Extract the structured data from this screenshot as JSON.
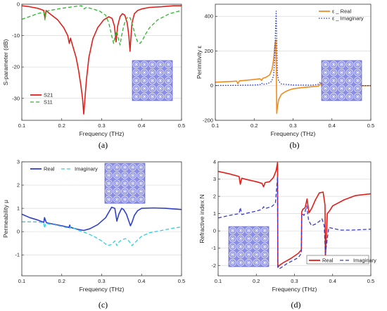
{
  "panels": [
    {
      "letter": "(a)",
      "xlabel": "Frequency (THz)",
      "ylabel": "S-parameter (dB)",
      "xlim": [
        0.1,
        0.5
      ],
      "ylim": [
        -37,
        0
      ],
      "xticks": [
        0.1,
        0.2,
        0.3,
        0.4,
        0.5
      ],
      "xtick_labels": [
        "0.1",
        "0.2",
        "0.3",
        "0.4",
        "0.5"
      ],
      "yticks": [
        -30,
        -20,
        -10,
        0
      ],
      "ytick_labels": [
        "-30",
        "-20",
        "-10",
        "0"
      ],
      "legend": [
        {
          "label": "S21",
          "color": "#e0201b",
          "dash": "solid"
        },
        {
          "label": "S11",
          "color": "#2db52d",
          "dash": "dashed"
        }
      ],
      "legend_position": "bottom-left",
      "inset": "unit-cell-array",
      "inset_position": "bottom-right"
    },
    {
      "letter": "(b)",
      "xlabel": "Frequency (THz)",
      "ylabel": "Perimitivity ε",
      "xlim": [
        0.1,
        0.5
      ],
      "ylim": [
        -200,
        470
      ],
      "xticks": [
        0.1,
        0.2,
        0.3,
        0.4,
        0.5
      ],
      "xtick_labels": [
        "0.1",
        "0.2",
        "0.3",
        "0.4",
        "0.5"
      ],
      "yticks": [
        -200,
        0,
        200,
        400
      ],
      "ytick_labels": [
        "-200",
        "0",
        "200",
        "400"
      ],
      "legend": [
        {
          "label": "ε _ Real",
          "color": "#f08c1e",
          "dash": "solid"
        },
        {
          "label": "ε _ Imaginary",
          "color": "#2233cc",
          "dash": "dotted"
        }
      ],
      "legend_position": "top-right",
      "inset": "unit-cell-array",
      "inset_position": "bottom-right"
    },
    {
      "letter": "(c)",
      "xlabel": "Frequency (THz)",
      "ylabel": "Permeability μ",
      "xlim": [
        0.1,
        0.5
      ],
      "ylim": [
        -1.9,
        3
      ],
      "xticks": [
        0.1,
        0.2,
        0.3,
        0.4,
        0.5
      ],
      "xtick_labels": [
        "0.1",
        "0.2",
        "0.3",
        "0.4",
        "0.5"
      ],
      "yticks": [
        -1,
        0,
        1,
        2,
        3
      ],
      "ytick_labels": [
        "-1",
        "0",
        "1",
        "2",
        "3"
      ],
      "legend": [
        {
          "label": "Real",
          "color": "#3040c8",
          "dash": "solid"
        },
        {
          "label": "Imaginary",
          "color": "#30d0e0",
          "dash": "dashed"
        }
      ],
      "legend_position": "top-left",
      "inset": "unit-cell-array",
      "inset_position": "top-center"
    },
    {
      "letter": "(d)",
      "xlabel": "Frequency (THz)",
      "ylabel": "Refractive index N",
      "xlim": [
        0.1,
        0.5
      ],
      "ylim": [
        -2.6,
        4
      ],
      "xticks": [
        0.1,
        0.2,
        0.3,
        0.4,
        0.5
      ],
      "xtick_labels": [
        "0.1",
        "0.2",
        "0.3",
        "0.4",
        "0.5"
      ],
      "yticks": [
        -2,
        -1,
        0,
        1,
        2,
        3,
        4
      ],
      "ytick_labels": [
        "-2",
        "-1",
        "0",
        "1",
        "2",
        "3",
        "4"
      ],
      "legend": [
        {
          "label": "Real",
          "color": "#e0201b",
          "dash": "solid"
        },
        {
          "label": "Imaginary",
          "color": "#3b3bc8",
          "dash": "dashed"
        }
      ],
      "legend_position": "bottom-right",
      "inset": "unit-cell-array",
      "inset_position": "bottom-left"
    }
  ],
  "chart_data": [
    {
      "type": "line",
      "title": "",
      "xlabel": "Frequency (THz)",
      "ylabel": "S-parameter (dB)",
      "xlim": [
        0.1,
        0.5
      ],
      "ylim": [
        -37,
        0
      ],
      "grid": "horizontal",
      "legend_position": "bottom-left",
      "series": [
        {
          "name": "S21",
          "color": "#e0201b",
          "dash": "solid",
          "x": [
            0.1,
            0.12,
            0.14,
            0.155,
            0.158,
            0.161,
            0.163,
            0.17,
            0.19,
            0.205,
            0.215,
            0.219,
            0.222,
            0.228,
            0.236,
            0.242,
            0.248,
            0.252,
            0.255,
            0.258,
            0.262,
            0.268,
            0.278,
            0.29,
            0.305,
            0.318,
            0.326,
            0.332,
            0.336,
            0.34,
            0.346,
            0.352,
            0.358,
            0.364,
            0.368,
            0.371,
            0.373,
            0.376,
            0.382,
            0.39,
            0.4,
            0.42,
            0.45,
            0.48,
            0.5
          ],
          "y": [
            -0.5,
            -0.8,
            -1.3,
            -2.0,
            -4.5,
            -2.0,
            -2.3,
            -3.0,
            -5.0,
            -7.5,
            -10.0,
            -12.5,
            -10.8,
            -13.5,
            -17.0,
            -21.0,
            -26.0,
            -30.0,
            -35.0,
            -30.0,
            -24.0,
            -17.0,
            -11.0,
            -7.5,
            -5.0,
            -4.0,
            -4.5,
            -7.0,
            -12.0,
            -7.0,
            -4.0,
            -3.0,
            -3.5,
            -6.0,
            -10.0,
            -15.0,
            -11.0,
            -6.0,
            -3.0,
            -2.0,
            -1.5,
            -1.0,
            -0.8,
            -0.5,
            -0.5
          ]
        },
        {
          "name": "S11",
          "color": "#2db52d",
          "dash": "dashed",
          "x": [
            0.1,
            0.14,
            0.155,
            0.158,
            0.161,
            0.165,
            0.2,
            0.24,
            0.25,
            0.256,
            0.262,
            0.275,
            0.295,
            0.31,
            0.318,
            0.325,
            0.33,
            0.334,
            0.338,
            0.342,
            0.346,
            0.35,
            0.355,
            0.36,
            0.366,
            0.372,
            0.378,
            0.384,
            0.39,
            0.396,
            0.402,
            0.41,
            0.42,
            0.44,
            0.47,
            0.5
          ],
          "y": [
            -4.8,
            -3.0,
            -2.5,
            -5.0,
            -2.4,
            -2.1,
            -1.3,
            -0.6,
            -0.5,
            -1.5,
            -1.0,
            -1.4,
            -2.2,
            -3.5,
            -6.0,
            -10.0,
            -12.5,
            -10.0,
            -8.5,
            -11.0,
            -13.0,
            -10.0,
            -7.0,
            -5.0,
            -4.0,
            -4.5,
            -7.0,
            -10.0,
            -12.0,
            -12.5,
            -11.5,
            -9.5,
            -7.5,
            -5.0,
            -3.0,
            -2.0
          ]
        }
      ]
    },
    {
      "type": "line",
      "title": "",
      "xlabel": "Frequency (THz)",
      "ylabel": "Perimitivity ε",
      "xlim": [
        0.1,
        0.5
      ],
      "ylim": [
        -200,
        470
      ],
      "grid": "horizontal",
      "legend_position": "top-right",
      "series": [
        {
          "name": "ε _ Real",
          "color": "#f08c1e",
          "dash": "solid",
          "x": [
            0.1,
            0.14,
            0.155,
            0.158,
            0.162,
            0.18,
            0.2,
            0.215,
            0.219,
            0.222,
            0.23,
            0.24,
            0.246,
            0.25,
            0.253,
            0.2555,
            0.257,
            0.258,
            0.26,
            0.263,
            0.27,
            0.28,
            0.29,
            0.3,
            0.32,
            0.35,
            0.365,
            0.372,
            0.375,
            0.38,
            0.4,
            0.45,
            0.5
          ],
          "y": [
            20,
            24,
            26,
            12,
            28,
            31,
            36,
            40,
            30,
            42,
            48,
            62,
            95,
            150,
            230,
            265,
            80,
            -160,
            -120,
            -80,
            -50,
            -35,
            -25,
            -18,
            -12,
            -6,
            -3,
            15,
            -12,
            -4,
            -3,
            -1,
            0
          ]
        },
        {
          "name": "ε _ Imaginary",
          "color": "#2233cc",
          "dash": "dotted",
          "x": [
            0.1,
            0.15,
            0.2,
            0.215,
            0.219,
            0.223,
            0.235,
            0.245,
            0.25,
            0.253,
            0.255,
            0.2565,
            0.258,
            0.26,
            0.263,
            0.27,
            0.3,
            0.35,
            0.365,
            0.37,
            0.375,
            0.38,
            0.4,
            0.5
          ],
          "y": [
            1,
            2,
            4,
            6,
            14,
            7,
            12,
            25,
            60,
            160,
            330,
            430,
            260,
            60,
            25,
            10,
            4,
            3,
            8,
            20,
            10,
            3,
            1,
            0
          ]
        }
      ]
    },
    {
      "type": "line",
      "title": "",
      "xlabel": "Frequency (THz)",
      "ylabel": "Permeability μ",
      "xlim": [
        0.1,
        0.5
      ],
      "ylim": [
        -1.9,
        3
      ],
      "grid": "horizontal",
      "legend_position": "top-left",
      "series": [
        {
          "name": "Real",
          "color": "#3040c8",
          "dash": "solid",
          "x": [
            0.1,
            0.12,
            0.14,
            0.155,
            0.157,
            0.16,
            0.162,
            0.18,
            0.2,
            0.218,
            0.22,
            0.222,
            0.24,
            0.255,
            0.27,
            0.29,
            0.31,
            0.325,
            0.333,
            0.338,
            0.343,
            0.35,
            0.355,
            0.362,
            0.368,
            0.372,
            0.376,
            0.382,
            0.39,
            0.4,
            0.43,
            0.46,
            0.5
          ],
          "y": [
            0.75,
            0.6,
            0.5,
            0.4,
            0.6,
            0.45,
            0.38,
            0.32,
            0.25,
            0.18,
            0.28,
            0.18,
            0.1,
            0.05,
            0.12,
            0.3,
            0.6,
            1.05,
            1.0,
            0.45,
            0.75,
            1.0,
            0.95,
            0.75,
            0.45,
            0.25,
            0.4,
            0.7,
            0.9,
            1.0,
            1.02,
            1.0,
            0.95
          ]
        },
        {
          "name": "Imaginary",
          "color": "#30d0e0",
          "dash": "dashed",
          "x": [
            0.1,
            0.14,
            0.155,
            0.157,
            0.16,
            0.18,
            0.2,
            0.22,
            0.222,
            0.24,
            0.26,
            0.28,
            0.3,
            0.315,
            0.325,
            0.333,
            0.338,
            0.343,
            0.35,
            0.36,
            0.368,
            0.376,
            0.382,
            0.39,
            0.4,
            0.42,
            0.45,
            0.48,
            0.5
          ],
          "y": [
            0.42,
            0.42,
            0.38,
            0.15,
            0.35,
            0.3,
            0.22,
            0.14,
            0.22,
            0.06,
            -0.05,
            -0.2,
            -0.4,
            -0.6,
            -0.55,
            -0.4,
            -0.6,
            -0.45,
            -0.35,
            -0.3,
            -0.4,
            -0.6,
            -0.5,
            -0.35,
            -0.2,
            -0.05,
            0.05,
            0.15,
            0.2
          ]
        }
      ]
    },
    {
      "type": "line",
      "title": "",
      "xlabel": "Frequency (THz)",
      "ylabel": "Refractive index N",
      "xlim": [
        0.1,
        0.5
      ],
      "ylim": [
        -2.6,
        4
      ],
      "grid": "horizontal",
      "legend_position": "bottom-right",
      "series": [
        {
          "name": "Real",
          "color": "#e0201b",
          "dash": "solid",
          "x": [
            0.1,
            0.13,
            0.155,
            0.158,
            0.162,
            0.18,
            0.2,
            0.215,
            0.219,
            0.223,
            0.235,
            0.245,
            0.252,
            0.2555,
            0.2565,
            0.26,
            0.27,
            0.29,
            0.31,
            0.318,
            0.319,
            0.322,
            0.328,
            0.333,
            0.338,
            0.345,
            0.355,
            0.365,
            0.375,
            0.38,
            0.381,
            0.386,
            0.393,
            0.4,
            0.43,
            0.46,
            0.5
          ],
          "y": [
            3.45,
            3.3,
            3.15,
            2.7,
            3.05,
            2.95,
            2.85,
            2.75,
            2.55,
            2.8,
            2.85,
            3.1,
            3.5,
            3.95,
            -2.1,
            -2.0,
            -1.85,
            -1.6,
            -1.3,
            -1.1,
            1.1,
            1.25,
            1.35,
            1.85,
            1.05,
            1.3,
            1.8,
            2.2,
            2.25,
            1.5,
            -1.6,
            1.0,
            1.2,
            1.45,
            1.8,
            2.05,
            2.15
          ]
        },
        {
          "name": "Imaginary",
          "color": "#3b3bc8",
          "dash": "dashed",
          "x": [
            0.1,
            0.13,
            0.155,
            0.158,
            0.162,
            0.18,
            0.2,
            0.215,
            0.219,
            0.223,
            0.24,
            0.25,
            0.2555,
            0.2565,
            0.26,
            0.28,
            0.31,
            0.318,
            0.319,
            0.325,
            0.332,
            0.337,
            0.345,
            0.355,
            0.365,
            0.372,
            0.378,
            0.381,
            0.39,
            0.42,
            0.45,
            0.5
          ],
          "y": [
            0.75,
            0.9,
            1.0,
            1.35,
            0.95,
            1.05,
            1.15,
            1.25,
            1.4,
            1.3,
            1.4,
            1.6,
            3.1,
            -2.1,
            -2.2,
            -1.9,
            -1.55,
            -1.3,
            1.0,
            0.9,
            1.45,
            0.6,
            0.3,
            0.4,
            0.55,
            0.7,
            0.3,
            -1.3,
            0.2,
            0.05,
            0.05,
            0.1
          ]
        }
      ]
    }
  ]
}
